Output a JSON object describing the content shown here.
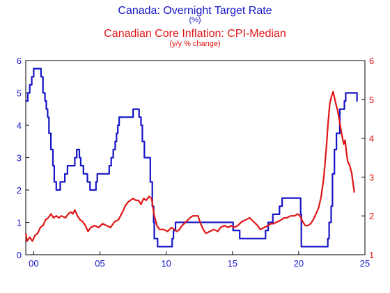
{
  "chart_data": {
    "type": "line",
    "titles": {
      "line1": "Canada: Overnight Target Rate",
      "line2": "(%)",
      "line3": "Canadian Core Inflation: CPI-Median",
      "line4": "(y/y % change)"
    },
    "colors": {
      "left_axis": "#1515c8",
      "right_axis": "#e01414",
      "frame": "#000000"
    },
    "x_range": [
      1999.4,
      2025.0
    ],
    "x_ticks": [
      {
        "value": 2000,
        "label": "00"
      },
      {
        "value": 2005,
        "label": "05"
      },
      {
        "value": 2010,
        "label": "10"
      },
      {
        "value": 2015,
        "label": "15"
      },
      {
        "value": 2020,
        "label": "20"
      },
      {
        "value": 2025,
        "label": "25"
      }
    ],
    "y_left": {
      "range": [
        0,
        6
      ],
      "ticks": [
        0,
        1,
        2,
        3,
        4,
        5,
        6
      ]
    },
    "y_right": {
      "range": [
        1,
        6
      ],
      "ticks": [
        1,
        2,
        3,
        4,
        5,
        6
      ]
    },
    "series": [
      {
        "axis": "left",
        "color": "#1515c8",
        "step": true,
        "points": [
          [
            1999.4,
            4.75
          ],
          [
            1999.55,
            5.0
          ],
          [
            1999.7,
            5.25
          ],
          [
            1999.85,
            5.5
          ],
          [
            2000.0,
            5.75
          ],
          [
            2000.55,
            5.5
          ],
          [
            2000.7,
            5.0
          ],
          [
            2000.85,
            4.75
          ],
          [
            2000.95,
            4.5
          ],
          [
            2001.05,
            4.25
          ],
          [
            2001.15,
            3.75
          ],
          [
            2001.3,
            3.25
          ],
          [
            2001.45,
            2.75
          ],
          [
            2001.55,
            2.25
          ],
          [
            2001.7,
            2.0
          ],
          [
            2002.0,
            2.25
          ],
          [
            2002.35,
            2.5
          ],
          [
            2002.55,
            2.75
          ],
          [
            2003.1,
            3.0
          ],
          [
            2003.25,
            3.25
          ],
          [
            2003.45,
            3.0
          ],
          [
            2003.55,
            2.75
          ],
          [
            2003.75,
            2.5
          ],
          [
            2004.05,
            2.25
          ],
          [
            2004.25,
            2.0
          ],
          [
            2004.7,
            2.25
          ],
          [
            2004.8,
            2.5
          ],
          [
            2005.7,
            2.75
          ],
          [
            2005.85,
            3.0
          ],
          [
            2006.0,
            3.25
          ],
          [
            2006.15,
            3.5
          ],
          [
            2006.25,
            3.75
          ],
          [
            2006.35,
            4.0
          ],
          [
            2006.45,
            4.25
          ],
          [
            2007.5,
            4.5
          ],
          [
            2007.95,
            4.25
          ],
          [
            2008.1,
            4.0
          ],
          [
            2008.2,
            3.5
          ],
          [
            2008.35,
            3.0
          ],
          [
            2008.8,
            2.25
          ],
          [
            2008.95,
            1.5
          ],
          [
            2009.05,
            1.0
          ],
          [
            2009.1,
            0.5
          ],
          [
            2009.35,
            0.25
          ],
          [
            2010.45,
            0.5
          ],
          [
            2010.55,
            0.75
          ],
          [
            2010.7,
            1.0
          ],
          [
            2015.05,
            0.75
          ],
          [
            2015.55,
            0.5
          ],
          [
            2017.5,
            0.75
          ],
          [
            2017.7,
            1.0
          ],
          [
            2018.05,
            1.25
          ],
          [
            2018.55,
            1.5
          ],
          [
            2018.75,
            1.75
          ],
          [
            2020.15,
            1.25
          ],
          [
            2020.2,
            0.25
          ],
          [
            2022.2,
            0.5
          ],
          [
            2022.3,
            1.0
          ],
          [
            2022.45,
            1.5
          ],
          [
            2022.55,
            2.5
          ],
          [
            2022.7,
            3.25
          ],
          [
            2022.85,
            3.75
          ],
          [
            2023.1,
            4.5
          ],
          [
            2023.45,
            4.75
          ],
          [
            2023.55,
            5.0
          ],
          [
            2024.4,
            4.75
          ],
          [
            2024.45,
            4.75
          ]
        ]
      },
      {
        "axis": "right",
        "color": "#e01414",
        "step": false,
        "points": [
          [
            1999.4,
            1.55
          ],
          [
            1999.5,
            1.35
          ],
          [
            1999.7,
            1.45
          ],
          [
            1999.9,
            1.35
          ],
          [
            2000.1,
            1.5
          ],
          [
            2000.3,
            1.55
          ],
          [
            2000.5,
            1.7
          ],
          [
            2000.7,
            1.75
          ],
          [
            2000.9,
            1.9
          ],
          [
            2001.1,
            1.95
          ],
          [
            2001.3,
            2.05
          ],
          [
            2001.5,
            1.95
          ],
          [
            2001.7,
            2.0
          ],
          [
            2001.9,
            1.95
          ],
          [
            2002.1,
            2.0
          ],
          [
            2002.4,
            1.95
          ],
          [
            2002.6,
            2.05
          ],
          [
            2002.8,
            2.1
          ],
          [
            2002.95,
            2.05
          ],
          [
            2003.1,
            2.15
          ],
          [
            2003.3,
            2.0
          ],
          [
            2003.5,
            1.9
          ],
          [
            2003.7,
            1.85
          ],
          [
            2003.9,
            1.75
          ],
          [
            2004.1,
            1.6
          ],
          [
            2004.3,
            1.7
          ],
          [
            2004.6,
            1.75
          ],
          [
            2004.9,
            1.7
          ],
          [
            2005.2,
            1.8
          ],
          [
            2005.5,
            1.75
          ],
          [
            2005.8,
            1.7
          ],
          [
            2006.1,
            1.85
          ],
          [
            2006.4,
            1.9
          ],
          [
            2006.7,
            2.1
          ],
          [
            2006.9,
            2.25
          ],
          [
            2007.1,
            2.35
          ],
          [
            2007.3,
            2.4
          ],
          [
            2007.5,
            2.45
          ],
          [
            2007.7,
            2.4
          ],
          [
            2007.9,
            2.4
          ],
          [
            2008.1,
            2.3
          ],
          [
            2008.3,
            2.45
          ],
          [
            2008.5,
            2.4
          ],
          [
            2008.7,
            2.5
          ],
          [
            2008.9,
            2.45
          ],
          [
            2009.1,
            2.0
          ],
          [
            2009.3,
            1.75
          ],
          [
            2009.5,
            1.65
          ],
          [
            2009.8,
            1.65
          ],
          [
            2010.1,
            1.6
          ],
          [
            2010.4,
            1.7
          ],
          [
            2010.6,
            1.65
          ],
          [
            2010.8,
            1.6
          ],
          [
            2011.0,
            1.65
          ],
          [
            2011.2,
            1.75
          ],
          [
            2011.5,
            1.85
          ],
          [
            2011.8,
            1.95
          ],
          [
            2012.0,
            2.0
          ],
          [
            2012.2,
            2.0
          ],
          [
            2012.4,
            2.0
          ],
          [
            2012.6,
            1.8
          ],
          [
            2012.8,
            1.65
          ],
          [
            2013.0,
            1.55
          ],
          [
            2013.3,
            1.6
          ],
          [
            2013.6,
            1.65
          ],
          [
            2013.9,
            1.6
          ],
          [
            2014.1,
            1.7
          ],
          [
            2014.4,
            1.75
          ],
          [
            2014.7,
            1.7
          ],
          [
            2014.9,
            1.75
          ],
          [
            2015.1,
            1.7
          ],
          [
            2015.4,
            1.75
          ],
          [
            2015.7,
            1.85
          ],
          [
            2016.0,
            1.9
          ],
          [
            2016.3,
            1.95
          ],
          [
            2016.6,
            1.85
          ],
          [
            2016.9,
            1.75
          ],
          [
            2017.1,
            1.65
          ],
          [
            2017.4,
            1.7
          ],
          [
            2017.7,
            1.75
          ],
          [
            2017.9,
            1.8
          ],
          [
            2018.1,
            1.8
          ],
          [
            2018.4,
            1.85
          ],
          [
            2018.7,
            1.9
          ],
          [
            2018.9,
            1.95
          ],
          [
            2019.1,
            1.95
          ],
          [
            2019.4,
            2.0
          ],
          [
            2019.7,
            2.0
          ],
          [
            2019.9,
            2.05
          ],
          [
            2020.1,
            2.0
          ],
          [
            2020.3,
            1.85
          ],
          [
            2020.5,
            1.75
          ],
          [
            2020.7,
            1.75
          ],
          [
            2020.9,
            1.8
          ],
          [
            2021.1,
            1.9
          ],
          [
            2021.3,
            2.05
          ],
          [
            2021.5,
            2.2
          ],
          [
            2021.7,
            2.5
          ],
          [
            2021.8,
            2.75
          ],
          [
            2021.9,
            3.0
          ],
          [
            2022.0,
            3.4
          ],
          [
            2022.1,
            3.8
          ],
          [
            2022.2,
            4.3
          ],
          [
            2022.35,
            4.9
          ],
          [
            2022.5,
            5.1
          ],
          [
            2022.6,
            5.2
          ],
          [
            2022.7,
            5.05
          ],
          [
            2022.8,
            4.9
          ],
          [
            2022.95,
            4.7
          ],
          [
            2023.1,
            4.4
          ],
          [
            2023.25,
            4.1
          ],
          [
            2023.4,
            3.85
          ],
          [
            2023.5,
            3.95
          ],
          [
            2023.6,
            3.65
          ],
          [
            2023.7,
            3.4
          ],
          [
            2023.85,
            3.3
          ],
          [
            2024.0,
            3.1
          ],
          [
            2024.1,
            2.85
          ],
          [
            2024.2,
            2.6
          ]
        ]
      }
    ]
  }
}
